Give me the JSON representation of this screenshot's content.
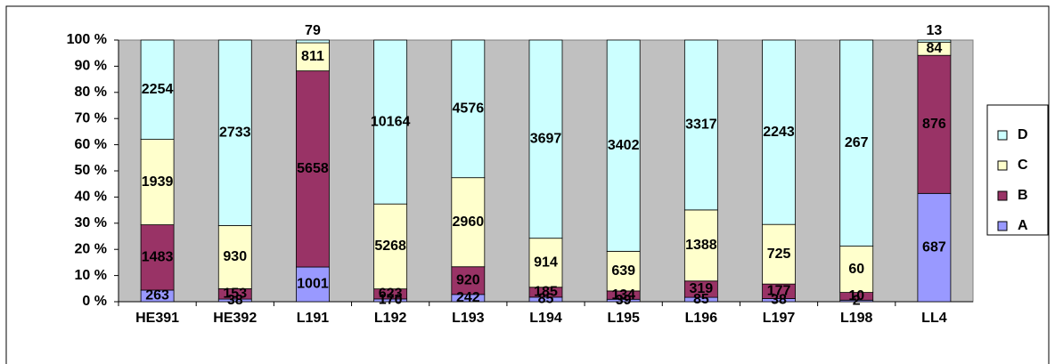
{
  "chart_data": {
    "type": "bar",
    "stacking": "percent",
    "categories": [
      "HE391",
      "HE392",
      "L191",
      "L192",
      "L193",
      "L194",
      "L195",
      "L196",
      "L197",
      "L198",
      "LL4"
    ],
    "series": [
      {
        "name": "A",
        "color": "#9999ff",
        "values": [
          263,
          38,
          1001,
          170,
          242,
          85,
          39,
          85,
          38,
          2,
          687
        ]
      },
      {
        "name": "B",
        "color": "#993366",
        "values": [
          1483,
          153,
          5658,
          623,
          920,
          185,
          134,
          319,
          177,
          10,
          876
        ]
      },
      {
        "name": "C",
        "color": "#ffffcc",
        "values": [
          1939,
          930,
          811,
          5268,
          2960,
          914,
          639,
          1388,
          725,
          60,
          84
        ]
      },
      {
        "name": "D",
        "color": "#ccffff",
        "values": [
          2254,
          2733,
          79,
          10164,
          4576,
          3697,
          3402,
          3317,
          2243,
          267,
          13
        ]
      }
    ],
    "ylim": [
      0,
      100
    ],
    "yticks": [
      {
        "value": 0,
        "label": "0 %"
      },
      {
        "value": 10,
        "label": "10 %"
      },
      {
        "value": 20,
        "label": "20 %"
      },
      {
        "value": 30,
        "label": "30 %"
      },
      {
        "value": 40,
        "label": "40 %"
      },
      {
        "value": 50,
        "label": "50 %"
      },
      {
        "value": 60,
        "label": "60 %"
      },
      {
        "value": 70,
        "label": "70 %"
      },
      {
        "value": 80,
        "label": "80 %"
      },
      {
        "value": 90,
        "label": "90 %"
      },
      {
        "value": 100,
        "label": "100 %"
      }
    ],
    "grid": false,
    "legend": "right",
    "plot_background": "#c0c0c0"
  }
}
